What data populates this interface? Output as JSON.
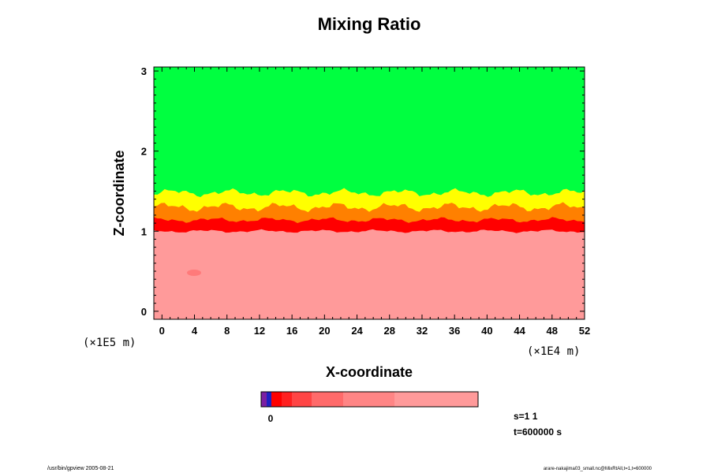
{
  "chart_data": {
    "type": "heatmap",
    "title": "Mixing Ratio",
    "xlabel": "X-coordinate",
    "ylabel": "Z-coordinate",
    "x_unit": "(×1E4 m)",
    "y_unit": "(×1E5 m)",
    "xlim": [
      -1,
      52
    ],
    "ylim": [
      -0.1,
      3.05
    ],
    "x_ticks": [
      "0",
      "4",
      "8",
      "12",
      "16",
      "20",
      "24",
      "28",
      "32",
      "36",
      "40",
      "44",
      "48",
      "52"
    ],
    "y_ticks": [
      "0",
      "1",
      "2",
      "3"
    ],
    "regions": [
      {
        "name": "upper",
        "color": "#00ff40",
        "z_range": [
          1.5,
          3.05
        ]
      },
      {
        "name": "transition",
        "colors": [
          "#ffff00",
          "#ffc000",
          "#ff8000",
          "#ff0000"
        ],
        "z_range": [
          1.0,
          1.5
        ]
      },
      {
        "name": "lower",
        "color": "#ff9a9a",
        "z_range": [
          -0.1,
          1.0
        ]
      }
    ],
    "colorbar": {
      "tick_label": "0",
      "colors": [
        "#7b1fa2",
        "#2020c0",
        "#ff0000",
        "#ff0000",
        "#ff2020",
        "#ff4545",
        "#ff6a6a",
        "#ff8585",
        "#ff9a9a"
      ]
    }
  },
  "annotations": {
    "step": "s=1 1",
    "time": "t=600000 s",
    "footer_left": "/usr/bin/gpview 2005-08-21",
    "footer_right": "arare-nakajima03_small.nc@MixRtAll,t=1,t=600000"
  }
}
